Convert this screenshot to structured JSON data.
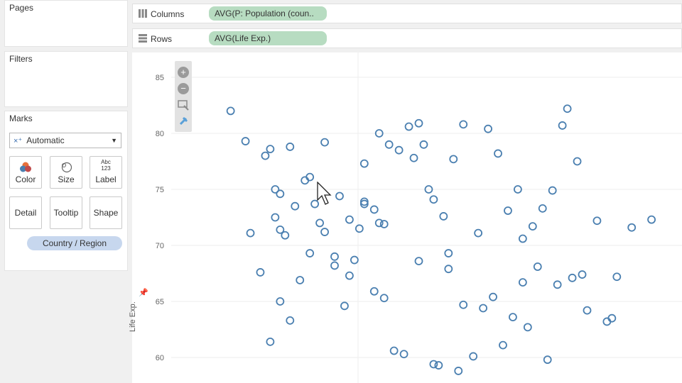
{
  "panels": {
    "pages_title": "Pages",
    "filters_title": "Filters",
    "marks_title": "Marks",
    "mark_type": "Automatic",
    "mark_buttons": {
      "color": "Color",
      "size": "Size",
      "label": "Label",
      "detail": "Detail",
      "tooltip": "Tooltip",
      "shape": "Shape"
    },
    "label_glyph_top": "Abc",
    "label_glyph_bottom": "123",
    "detail_pill": "Country / Region"
  },
  "shelves": {
    "columns_label": "Columns",
    "columns_pill": "AVG(P: Population (coun..",
    "rows_label": "Rows",
    "rows_pill": "AVG(Life Exp.)"
  },
  "toolbar": {
    "zoom_in": "+",
    "zoom_out": "−"
  },
  "colors": {
    "mark": "#4a7fb0",
    "shelf_pill_green": "#b7dcc1",
    "pill_blue": "#c7d7ee"
  },
  "chart_data": {
    "type": "scatter",
    "ylabel": "Life Exp.",
    "ylim": [
      58,
      87
    ],
    "yticks": [
      60,
      65,
      70,
      75,
      80,
      85
    ],
    "x": [
      0.12,
      0.15,
      0.19,
      0.2,
      0.21,
      0.21,
      0.22,
      0.22,
      0.23,
      0.24,
      0.25,
      0.27,
      0.28,
      0.29,
      0.3,
      0.31,
      0.33,
      0.34,
      0.36,
      0.37,
      0.38,
      0.39,
      0.39,
      0.41,
      0.42,
      0.42,
      0.43,
      0.44,
      0.46,
      0.48,
      0.49,
      0.5,
      0.51,
      0.52,
      0.53,
      0.55,
      0.56,
      0.57,
      0.59,
      0.62,
      0.64,
      0.66,
      0.68,
      0.7,
      0.71,
      0.73,
      0.75,
      0.77,
      0.79,
      0.8,
      0.82,
      0.86,
      0.89,
      0.93,
      0.97,
      0.16,
      0.2,
      0.24,
      0.28,
      0.33,
      0.35,
      0.41,
      0.47,
      0.54,
      0.58,
      0.61,
      0.67,
      0.72,
      0.78,
      0.84,
      0.18,
      0.26,
      0.36,
      0.43,
      0.5,
      0.56,
      0.63,
      0.69,
      0.74,
      0.81,
      0.88,
      0.22,
      0.31,
      0.39,
      0.45,
      0.53,
      0.59,
      0.65,
      0.71,
      0.76,
      0.83,
      0.9
    ],
    "y": [
      82,
      79.3,
      78,
      78.6,
      75,
      72.5,
      74.6,
      71.4,
      70.9,
      78.8,
      73.5,
      75.8,
      76.1,
      73.7,
      72,
      79.2,
      69,
      74.4,
      72.3,
      68.7,
      71.5,
      77.3,
      73.9,
      73.2,
      72,
      80,
      71.9,
      79,
      78.5,
      80.6,
      77.8,
      80.9,
      79,
      75,
      74.1,
      72.6,
      69.3,
      77.7,
      80.8,
      71.1,
      80.4,
      78.2,
      73.1,
      75,
      70.6,
      71.7,
      73.3,
      74.9,
      80.7,
      82.2,
      77.5,
      72.2,
      63.5,
      71.6,
      72.3,
      71.1,
      61.4,
      63.3,
      69.3,
      68.2,
      64.6,
      65.9,
      60.3,
      59.3,
      58.8,
      60.1,
      61.1,
      62.7,
      66.5,
      64.2,
      67.6,
      66.9,
      67.3,
      65.3,
      68.6,
      67.9,
      64.4,
      63.6,
      68.1,
      67.1,
      63.2,
      65.0,
      71.2,
      73.7,
      60.6,
      59.4,
      64.7,
      65.4,
      66.7,
      59.8,
      67.4,
      67.2
    ]
  }
}
